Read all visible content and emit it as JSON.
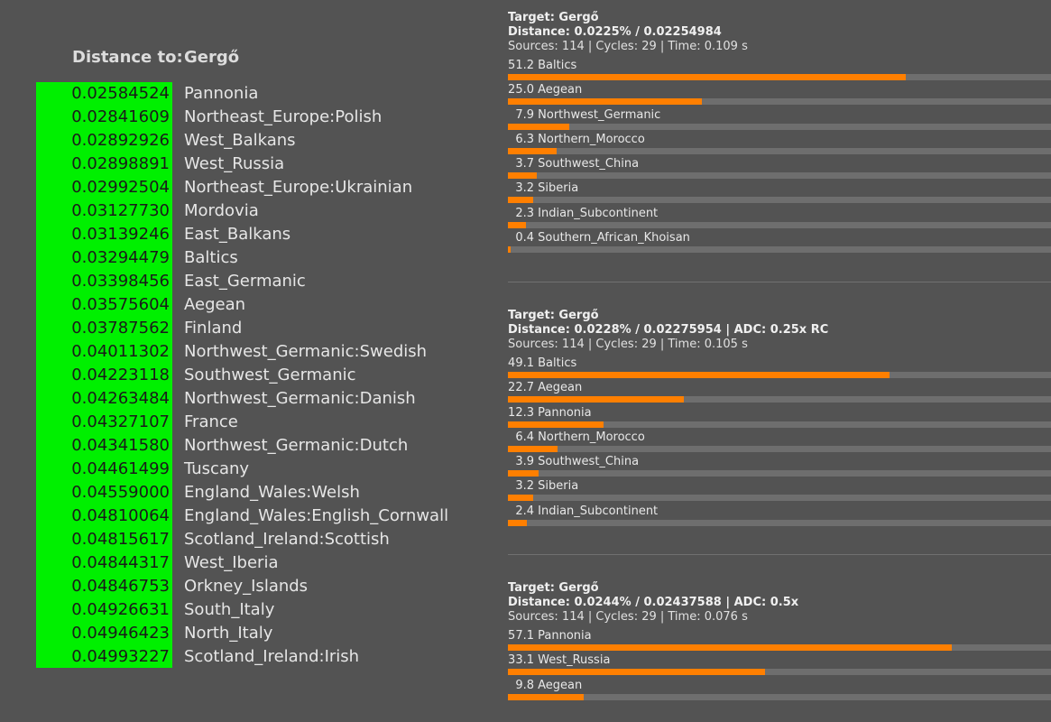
{
  "distance_header": {
    "label": "Distance to:",
    "target": "Gergő"
  },
  "distances": [
    {
      "value": "0.02584524",
      "name": "Pannonia"
    },
    {
      "value": "0.02841609",
      "name": "Northeast_Europe:Polish"
    },
    {
      "value": "0.02892926",
      "name": "West_Balkans"
    },
    {
      "value": "0.02898891",
      "name": "West_Russia"
    },
    {
      "value": "0.02992504",
      "name": "Northeast_Europe:Ukrainian"
    },
    {
      "value": "0.03127730",
      "name": "Mordovia"
    },
    {
      "value": "0.03139246",
      "name": "East_Balkans"
    },
    {
      "value": "0.03294479",
      "name": "Baltics"
    },
    {
      "value": "0.03398456",
      "name": "East_Germanic"
    },
    {
      "value": "0.03575604",
      "name": "Aegean"
    },
    {
      "value": "0.03787562",
      "name": "Finland"
    },
    {
      "value": "0.04011302",
      "name": "Northwest_Germanic:Swedish"
    },
    {
      "value": "0.04223118",
      "name": "Southwest_Germanic"
    },
    {
      "value": "0.04263484",
      "name": "Northwest_Germanic:Danish"
    },
    {
      "value": "0.04327107",
      "name": "France"
    },
    {
      "value": "0.04341580",
      "name": "Northwest_Germanic:Dutch"
    },
    {
      "value": "0.04461499",
      "name": "Tuscany"
    },
    {
      "value": "0.04559000",
      "name": "England_Wales:Welsh"
    },
    {
      "value": "0.04810064",
      "name": "England_Wales:English_Cornwall"
    },
    {
      "value": "0.04815617",
      "name": "Scotland_Ireland:Scottish"
    },
    {
      "value": "0.04844317",
      "name": "West_Iberia"
    },
    {
      "value": "0.04846753",
      "name": "Orkney_Islands"
    },
    {
      "value": "0.04926631",
      "name": "South_Italy"
    },
    {
      "value": "0.04946423",
      "name": "North_Italy"
    },
    {
      "value": "0.04993227",
      "name": "Scotland_Ireland:Irish"
    }
  ],
  "panels": [
    {
      "target": "Target: Gergő",
      "distance": "Distance: 0.0225% / 0.02254984",
      "sources": "Sources: 114 | Cycles: 29 | Time: 0.109 s",
      "items": [
        {
          "pct": "51.2",
          "name": "Baltics",
          "value": 51.2
        },
        {
          "pct": "25.0",
          "name": "Aegean",
          "value": 25.0
        },
        {
          "pct": "7.9",
          "name": "Northwest_Germanic",
          "value": 7.9
        },
        {
          "pct": "6.3",
          "name": "Northern_Morocco",
          "value": 6.3
        },
        {
          "pct": "3.7",
          "name": "Southwest_China",
          "value": 3.7
        },
        {
          "pct": "3.2",
          "name": "Siberia",
          "value": 3.2
        },
        {
          "pct": "2.3",
          "name": "Indian_Subcontinent",
          "value": 2.3
        },
        {
          "pct": "0.4",
          "name": "Southern_African_Khoisan",
          "value": 0.4
        }
      ]
    },
    {
      "target": "Target: Gergő",
      "distance": "Distance: 0.0228% / 0.02275954 | ADC: 0.25x RC",
      "sources": "Sources: 114 | Cycles: 29 | Time: 0.105 s",
      "items": [
        {
          "pct": "49.1",
          "name": "Baltics",
          "value": 49.1
        },
        {
          "pct": "22.7",
          "name": "Aegean",
          "value": 22.7
        },
        {
          "pct": "12.3",
          "name": "Pannonia",
          "value": 12.3
        },
        {
          "pct": "6.4",
          "name": "Northern_Morocco",
          "value": 6.4
        },
        {
          "pct": "3.9",
          "name": "Southwest_China",
          "value": 3.9
        },
        {
          "pct": "3.2",
          "name": "Siberia",
          "value": 3.2
        },
        {
          "pct": "2.4",
          "name": "Indian_Subcontinent",
          "value": 2.4
        }
      ]
    },
    {
      "target": "Target: Gergő",
      "distance": "Distance: 0.0244% / 0.02437588 | ADC: 0.5x",
      "sources": "Sources: 114 | Cycles: 29 | Time: 0.076 s",
      "items": [
        {
          "pct": "57.1",
          "name": "Pannonia",
          "value": 57.1
        },
        {
          "pct": "33.1",
          "name": "West_Russia",
          "value": 33.1
        },
        {
          "pct": "9.8",
          "name": "Aegean",
          "value": 9.8
        }
      ]
    }
  ],
  "colors": {
    "background": "#535353",
    "distance_cell": "#00f000",
    "bar_fill": "#ff7f00",
    "bar_track": "#6e6e6e"
  }
}
